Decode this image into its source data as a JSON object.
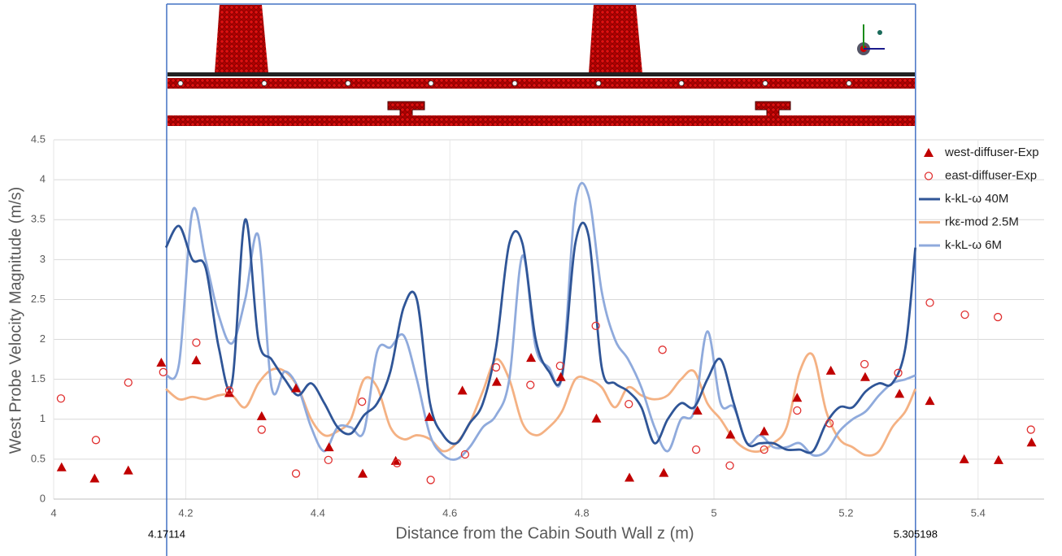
{
  "chart_data": {
    "type": "line",
    "x_label": "Distance from the Cabin South Wall z (m)",
    "y_label": "West Probe Velocity Magnitude (m/s)",
    "xlim": [
      4,
      5.5
    ],
    "ylim": [
      0,
      4.5
    ],
    "xticks": [
      4,
      4.2,
      4.4,
      4.6,
      4.8,
      5,
      5.2,
      5.4
    ],
    "yticks": [
      0,
      0.5,
      1,
      1.5,
      2,
      2.5,
      3,
      3.5,
      4,
      4.5
    ],
    "grid": true,
    "legend": "right",
    "vlines": [
      4.17114,
      5.305198
    ],
    "vline_color": "#4472c4",
    "series": [
      {
        "name": "west-diffuser-Exp",
        "marker": "triangle",
        "color": "#c00000",
        "x": [
          4.012,
          4.062,
          4.113,
          4.163,
          4.216,
          4.266,
          4.315,
          4.367,
          4.417,
          4.468,
          4.518,
          4.569,
          4.619,
          4.671,
          4.723,
          4.768,
          4.822,
          4.872,
          4.924,
          4.975,
          5.025,
          5.076,
          5.126,
          5.177,
          5.229,
          5.281,
          5.327,
          5.379,
          5.431,
          5.481
        ],
        "values": [
          0.4,
          0.26,
          0.36,
          1.71,
          1.74,
          1.33,
          1.04,
          1.39,
          0.65,
          0.32,
          0.48,
          1.03,
          1.36,
          1.47,
          1.77,
          1.53,
          1.01,
          0.27,
          0.33,
          1.11,
          0.81,
          0.85,
          1.27,
          1.61,
          1.53,
          1.32,
          1.23,
          0.5,
          0.49,
          0.71
        ]
      },
      {
        "name": "east-diffuser-Exp",
        "marker": "circle",
        "color": "#e03030",
        "x": [
          4.011,
          4.064,
          4.113,
          4.166,
          4.216,
          4.266,
          4.315,
          4.367,
          4.416,
          4.467,
          4.52,
          4.571,
          4.623,
          4.67,
          4.722,
          4.767,
          4.821,
          4.871,
          4.922,
          4.973,
          5.024,
          5.076,
          5.126,
          5.175,
          5.228,
          5.279,
          5.327,
          5.38,
          5.43,
          5.48
        ],
        "values": [
          1.26,
          0.74,
          1.46,
          1.59,
          1.96,
          1.36,
          0.87,
          0.32,
          0.49,
          1.22,
          0.45,
          0.24,
          0.56,
          1.65,
          1.43,
          1.67,
          2.17,
          1.19,
          1.87,
          0.62,
          0.42,
          0.62,
          1.11,
          0.95,
          1.69,
          1.58,
          2.46,
          2.31,
          2.28,
          0.87
        ]
      },
      {
        "name": "k-kL-ω 40M",
        "marker": "line",
        "color": "#2f5597",
        "x": [
          4.17,
          4.19,
          4.21,
          4.23,
          4.25,
          4.27,
          4.29,
          4.31,
          4.33,
          4.35,
          4.37,
          4.39,
          4.41,
          4.43,
          4.45,
          4.47,
          4.49,
          4.51,
          4.53,
          4.55,
          4.57,
          4.59,
          4.61,
          4.63,
          4.65,
          4.67,
          4.69,
          4.71,
          4.73,
          4.75,
          4.77,
          4.79,
          4.81,
          4.83,
          4.85,
          4.87,
          4.89,
          4.91,
          4.93,
          4.95,
          4.97,
          4.99,
          5.01,
          5.03,
          5.05,
          5.07,
          5.09,
          5.11,
          5.13,
          5.15,
          5.17,
          5.19,
          5.21,
          5.23,
          5.25,
          5.27,
          5.29,
          5.305
        ],
        "values": [
          3.15,
          3.42,
          3.0,
          2.9,
          1.9,
          1.45,
          3.5,
          2.0,
          1.75,
          1.5,
          1.3,
          1.45,
          1.2,
          0.9,
          0.82,
          1.05,
          1.2,
          1.6,
          2.4,
          2.5,
          1.2,
          0.8,
          0.7,
          0.95,
          1.2,
          1.9,
          3.2,
          3.2,
          2.0,
          1.6,
          1.55,
          3.2,
          3.3,
          1.65,
          1.45,
          1.35,
          1.15,
          0.7,
          1.0,
          1.2,
          1.15,
          1.5,
          1.75,
          1.2,
          0.7,
          0.7,
          0.7,
          0.62,
          0.62,
          0.6,
          0.95,
          1.15,
          1.15,
          1.35,
          1.45,
          1.45,
          1.9,
          3.15
        ]
      },
      {
        "name": "rkε-mod 2.5M",
        "marker": "line",
        "color": "#f4b183",
        "x": [
          4.17,
          4.19,
          4.21,
          4.23,
          4.25,
          4.27,
          4.29,
          4.31,
          4.33,
          4.35,
          4.37,
          4.39,
          4.41,
          4.43,
          4.45,
          4.47,
          4.49,
          4.51,
          4.53,
          4.55,
          4.57,
          4.59,
          4.61,
          4.63,
          4.65,
          4.67,
          4.69,
          4.71,
          4.73,
          4.75,
          4.77,
          4.79,
          4.81,
          4.83,
          4.85,
          4.87,
          4.89,
          4.91,
          4.93,
          4.95,
          4.97,
          4.99,
          5.01,
          5.03,
          5.05,
          5.07,
          5.09,
          5.11,
          5.13,
          5.15,
          5.17,
          5.19,
          5.21,
          5.23,
          5.25,
          5.27,
          5.29,
          5.305
        ],
        "values": [
          1.38,
          1.25,
          1.28,
          1.25,
          1.3,
          1.3,
          1.15,
          1.45,
          1.62,
          1.6,
          1.4,
          1.0,
          0.8,
          0.85,
          1.0,
          1.5,
          1.4,
          0.9,
          0.75,
          0.8,
          0.75,
          0.6,
          0.7,
          0.95,
          1.35,
          1.75,
          1.5,
          0.95,
          0.8,
          0.9,
          1.1,
          1.5,
          1.5,
          1.4,
          1.15,
          1.4,
          1.3,
          1.25,
          1.3,
          1.5,
          1.6,
          1.2,
          1.0,
          0.75,
          0.62,
          0.6,
          0.7,
          0.9,
          1.6,
          1.8,
          1.1,
          0.75,
          0.65,
          0.55,
          0.6,
          0.9,
          1.1,
          1.38
        ]
      },
      {
        "name": "k-kL-ω 6M",
        "marker": "line",
        "color": "#8faadc",
        "x": [
          4.17,
          4.19,
          4.21,
          4.23,
          4.25,
          4.27,
          4.29,
          4.31,
          4.33,
          4.35,
          4.37,
          4.39,
          4.41,
          4.43,
          4.45,
          4.47,
          4.49,
          4.51,
          4.53,
          4.55,
          4.57,
          4.59,
          4.61,
          4.63,
          4.65,
          4.67,
          4.69,
          4.71,
          4.73,
          4.75,
          4.77,
          4.79,
          4.81,
          4.83,
          4.85,
          4.87,
          4.89,
          4.91,
          4.93,
          4.95,
          4.97,
          4.99,
          5.01,
          5.03,
          5.05,
          5.07,
          5.09,
          5.11,
          5.13,
          5.15,
          5.17,
          5.19,
          5.21,
          5.23,
          5.25,
          5.27,
          5.29,
          5.305
        ],
        "values": [
          1.55,
          1.7,
          3.6,
          3.0,
          2.3,
          1.95,
          2.5,
          3.3,
          1.4,
          1.6,
          1.4,
          0.9,
          0.6,
          0.9,
          0.9,
          0.85,
          1.85,
          1.9,
          2.05,
          1.5,
          0.8,
          0.55,
          0.5,
          0.65,
          0.9,
          1.05,
          1.5,
          3.05,
          1.9,
          1.65,
          1.55,
          3.7,
          3.8,
          2.6,
          2.0,
          1.75,
          1.4,
          0.9,
          0.6,
          1.0,
          1.1,
          2.1,
          1.2,
          1.15,
          0.7,
          0.8,
          0.65,
          0.65,
          0.7,
          0.55,
          0.6,
          0.85,
          1.0,
          1.1,
          1.3,
          1.45,
          1.5,
          1.55
        ]
      }
    ]
  }
}
